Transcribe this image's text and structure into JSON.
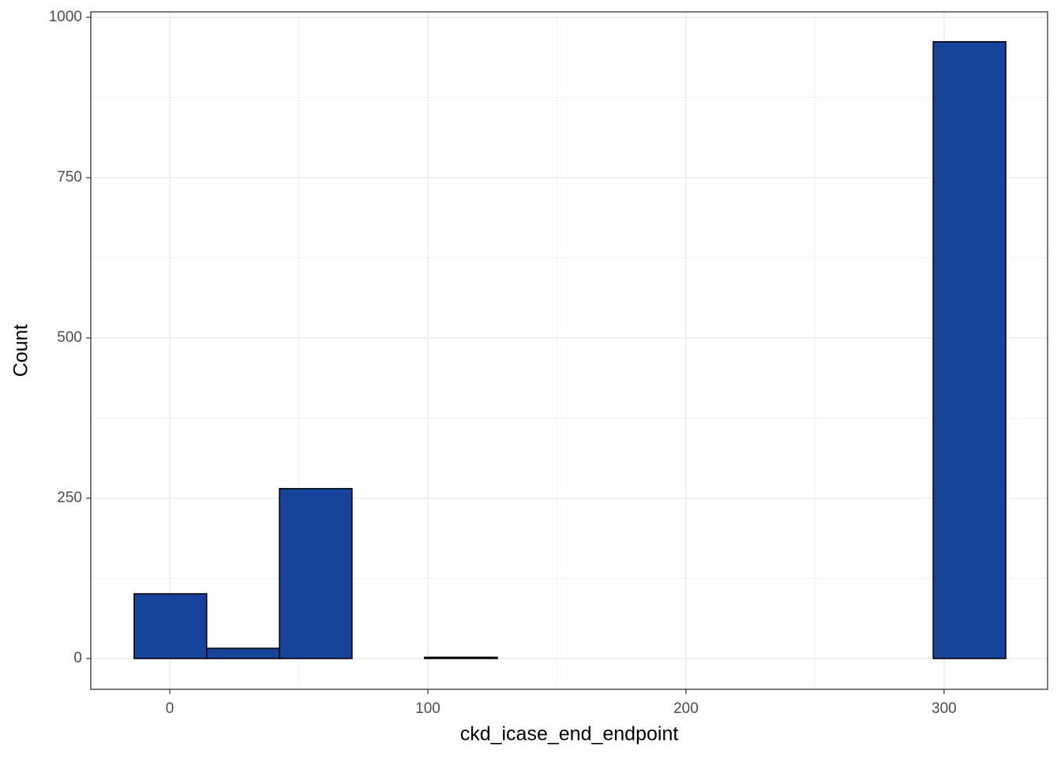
{
  "chart_data": {
    "type": "histogram",
    "x_label": "ckd_icase_end_endpoint",
    "y_label": "Count",
    "bins": [
      -13.8,
      14.3,
      42.5,
      70.6,
      98.7,
      126.9,
      155.0,
      183.2,
      211.3,
      239.5,
      267.6,
      295.8,
      323.9
    ],
    "values": [
      101,
      16,
      265,
      0,
      2,
      0,
      0,
      0,
      0,
      0,
      0,
      962
    ],
    "color": "#17449a",
    "edge_color": "#000000",
    "xlim": [
      -30.6,
      340.1
    ],
    "xticks": [
      0,
      100,
      200,
      300
    ],
    "x_minor_ticks": [
      50,
      150,
      250
    ],
    "ylim": [
      -48,
      1008.6
    ],
    "yticks": [
      0,
      250,
      500,
      750,
      1000
    ],
    "y_minor_ticks": [
      125,
      375,
      625,
      875
    ],
    "grid": true
  }
}
